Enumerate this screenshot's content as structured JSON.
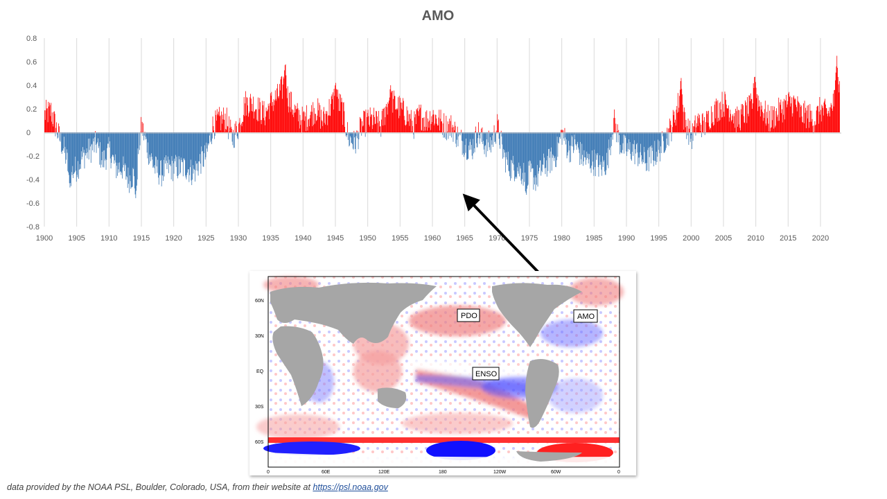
{
  "credit": {
    "text": "data provided by the NOAA PSL, Boulder, Colorado, USA, from their website at ",
    "link_text": "https://psl.noaa.gov"
  },
  "map": {
    "labels": {
      "pdo": "PDO",
      "enso": "ENSO",
      "amo": "AMO"
    },
    "lat_ticks": [
      "60N",
      "30N",
      "EQ",
      "30S",
      "60S"
    ],
    "lon_ticks": [
      "0",
      "60E",
      "120E",
      "180",
      "120W",
      "60W",
      "0"
    ]
  },
  "colors": {
    "positive": "#ff0000",
    "negative": "#3b78b4",
    "grid": "#d9d9d9",
    "text": "#595959"
  },
  "chart_data": {
    "type": "bar",
    "title": "AMO",
    "xlabel": "",
    "ylabel": "",
    "ylim": [
      -0.8,
      0.8
    ],
    "yticks": [
      "0.8",
      "0.6",
      "0.4",
      "0.2",
      "0",
      "-0.2",
      "-0.4",
      "-0.6",
      "-0.8"
    ],
    "xlim": [
      1900,
      2023
    ],
    "xticks": [
      "1900",
      "1905",
      "1910",
      "1915",
      "1920",
      "1925",
      "1930",
      "1935",
      "1940",
      "1945",
      "1950",
      "1955",
      "1960",
      "1965",
      "1970",
      "1975",
      "1980",
      "1985",
      "1990",
      "1995",
      "2000",
      "2005",
      "2010",
      "2015",
      "2020"
    ],
    "grid": "vertical",
    "anchors_x": [
      1900,
      1901,
      1902,
      1903,
      1904,
      1905,
      1906,
      1908,
      1909,
      1910,
      1911,
      1912,
      1913,
      1914,
      1915,
      1916,
      1917,
      1918,
      1919,
      1920,
      1921,
      1922,
      1923,
      1924,
      1925,
      1926,
      1927,
      1928,
      1929,
      1930,
      1931,
      1932,
      1933,
      1934,
      1935,
      1936,
      1937,
      1938,
      1939,
      1940,
      1941,
      1942,
      1943,
      1944,
      1945,
      1946,
      1947,
      1948,
      1949,
      1950,
      1951,
      1952,
      1953,
      1954,
      1955,
      1956,
      1957,
      1958,
      1959,
      1960,
      1961,
      1962,
      1963,
      1964,
      1965,
      1966,
      1967,
      1968,
      1969,
      1970,
      1971,
      1972,
      1973,
      1974,
      1975,
      1976,
      1977,
      1978,
      1979,
      1980,
      1981,
      1982,
      1983,
      1984,
      1985,
      1986,
      1987,
      1988,
      1989,
      1990,
      1991,
      1992,
      1993,
      1994,
      1995,
      1996,
      1997,
      1998,
      1999,
      2000,
      2001,
      2002,
      2003,
      2004,
      2005,
      2006,
      2007,
      2008,
      2009,
      2010,
      2011,
      2012,
      2013,
      2014,
      2015,
      2016,
      2017,
      2018,
      2019,
      2020,
      2021,
      2022,
      2023
    ],
    "anchors_y": [
      0.15,
      0.18,
      0.0,
      -0.15,
      -0.35,
      -0.3,
      -0.2,
      -0.1,
      -0.25,
      -0.15,
      -0.3,
      -0.3,
      -0.4,
      -0.35,
      0.05,
      -0.15,
      -0.3,
      -0.35,
      -0.3,
      -0.3,
      -0.3,
      -0.3,
      -0.35,
      -0.25,
      -0.2,
      0.05,
      0.1,
      0.12,
      -0.05,
      0.05,
      0.25,
      0.25,
      0.2,
      0.15,
      0.25,
      0.3,
      0.4,
      0.25,
      0.15,
      0.1,
      0.15,
      0.2,
      0.1,
      0.2,
      0.3,
      0.2,
      -0.05,
      -0.1,
      0.05,
      0.1,
      0.1,
      0.05,
      0.25,
      0.25,
      0.2,
      0.15,
      0.05,
      0.15,
      0.1,
      0.15,
      0.1,
      0.05,
      0.05,
      -0.05,
      -0.1,
      -0.15,
      0.0,
      -0.1,
      -0.1,
      0.05,
      -0.2,
      -0.3,
      -0.3,
      -0.35,
      -0.35,
      -0.4,
      -0.3,
      -0.25,
      -0.2,
      0.0,
      -0.15,
      -0.1,
      -0.2,
      -0.25,
      -0.25,
      -0.3,
      -0.25,
      0.1,
      -0.1,
      -0.15,
      -0.15,
      -0.2,
      -0.25,
      -0.2,
      -0.15,
      -0.05,
      0.05,
      0.25,
      0.1,
      -0.05,
      0.1,
      0.05,
      0.15,
      0.2,
      0.25,
      0.2,
      0.1,
      0.15,
      0.2,
      0.3,
      0.2,
      0.1,
      0.15,
      0.2,
      0.25,
      0.25,
      0.15,
      0.15,
      0.1,
      0.2,
      0.15,
      0.25,
      0.4
    ],
    "peaks": [
      [
        1937.2,
        0.6
      ],
      [
        1914.1,
        -0.57
      ],
      [
        1974.5,
        -0.53
      ],
      [
        2022.5,
        0.65
      ],
      [
        1945,
        0.42
      ],
      [
        2009.8,
        0.5
      ],
      [
        1998.4,
        0.48
      ],
      [
        1903.9,
        -0.47
      ],
      [
        1953.5,
        0.4
      ]
    ]
  }
}
